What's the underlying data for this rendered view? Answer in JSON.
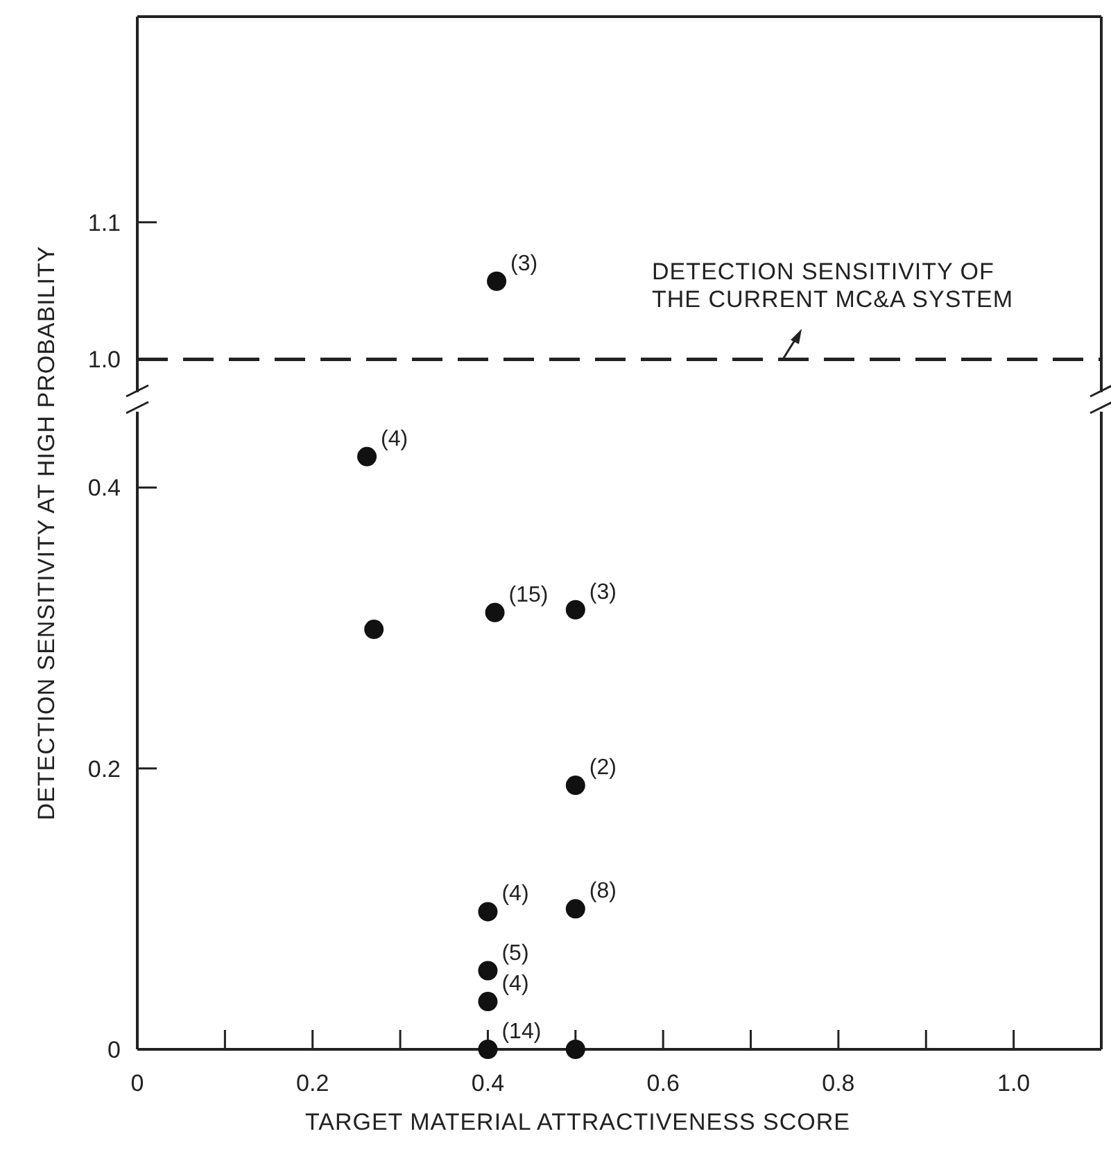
{
  "chart_data": [
    {
      "type": "scatter",
      "xlim": [
        0,
        1.1
      ],
      "ylim": [
        0.976,
        1.25
      ],
      "yticks": [
        {
          "value": 1,
          "label": "1.0"
        },
        1.1
      ],
      "tick_labels": "y",
      "marker": "circle",
      "color": "#111111",
      "x": [
        0.41
      ],
      "values": [
        1.057
      ],
      "ref_lines": [
        {
          "axis": "y",
          "value": 1,
          "label": "DETECTION SENSITIVITY OF THE CURRENT MC&A SYSTEM",
          "line_style": "dashed",
          "color": "#222222"
        }
      ],
      "annotations": [
        {
          "text": "(3)",
          "x": 0.41,
          "y": 1.057
        }
      ]
    },
    {
      "type": "scatter",
      "xlabel": "TARGET MATERIAL ATTRACTIVENESS SCORE",
      "ylabel": "DETECTION SENSITIVITY AT HIGH PROBABILITY",
      "xlim": [
        0,
        1.1
      ],
      "ylim": [
        0,
        0.454
      ],
      "xticks": [
        0,
        {
          "value": 0.1,
          "label": null
        },
        0.2,
        {
          "value": 0.3,
          "label": null
        },
        0.4,
        {
          "value": 0.5,
          "label": null
        },
        0.6,
        {
          "value": 0.7,
          "label": null
        },
        0.8,
        {
          "value": 0.9,
          "label": null
        },
        {
          "value": 1,
          "label": "1.0"
        }
      ],
      "yticks": [
        0,
        0.2,
        0.4
      ],
      "marker": "circle",
      "color": "#111111",
      "x": [
        0.262,
        0.27,
        0.408,
        0.5,
        0.5,
        0.4,
        0.5,
        0.4,
        0.4,
        0.4,
        0.5
      ],
      "values": [
        0.422,
        0.299,
        0.311,
        0.313,
        0.188,
        0.098,
        0.1,
        0.056,
        0.034,
        0.0,
        0.0
      ],
      "annotations": [
        {
          "text": "(4)",
          "x": 0.262,
          "y": 0.422
        },
        {
          "text": "(15)",
          "x": 0.408,
          "y": 0.311
        },
        {
          "text": "(3)",
          "x": 0.5,
          "y": 0.313
        },
        {
          "text": "(2)",
          "x": 0.5,
          "y": 0.188
        },
        {
          "text": "(4)",
          "x": 0.4,
          "y": 0.098
        },
        {
          "text": "(8)",
          "x": 0.5,
          "y": 0.1
        },
        {
          "text": "(5)",
          "x": 0.4,
          "y": 0.056
        },
        {
          "text": "(4)",
          "x": 0.4,
          "y": 0.034
        },
        {
          "text": "(14)",
          "x": 0.4,
          "y": 0.0
        }
      ]
    }
  ]
}
